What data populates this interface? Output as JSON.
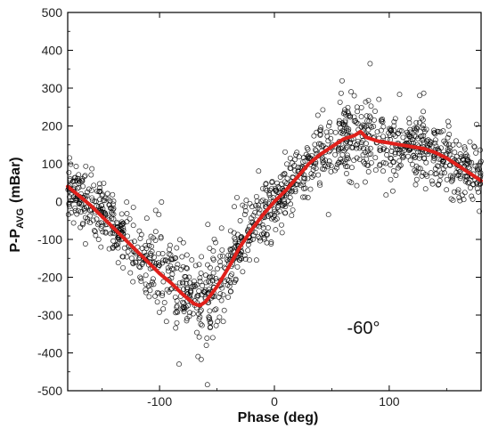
{
  "chart_data": {
    "type": "scatter",
    "title": "",
    "xlabel": "Phase (deg)",
    "ylabel_main": "P-P",
    "ylabel_sub": "AVG",
    "ylabel_unit": "(mBar)",
    "xlim": [
      -180,
      180
    ],
    "ylim": [
      -500,
      500
    ],
    "xticks": [
      -100,
      0,
      100
    ],
    "yticks": [
      -500,
      -400,
      -300,
      -200,
      -100,
      0,
      100,
      200,
      300,
      400,
      500
    ],
    "grid": false,
    "annotation": "-60°",
    "series": [
      {
        "style": "scatter",
        "marker": "open-circle",
        "color": "#000000",
        "spread_mbar": 40,
        "point_count": 1400
      },
      {
        "style": "line",
        "color": "#e0201b",
        "x": [
          -180,
          -170,
          -160,
          -150,
          -140,
          -130,
          -120,
          -110,
          -100,
          -90,
          -80,
          -70,
          -65,
          -60,
          -50,
          -40,
          -30,
          -20,
          -10,
          0,
          10,
          20,
          30,
          40,
          50,
          60,
          70,
          75,
          80,
          90,
          100,
          110,
          120,
          130,
          140,
          150,
          160,
          170,
          180
        ],
        "y": [
          40,
          15,
          -10,
          -40,
          -70,
          -100,
          -130,
          -160,
          -190,
          -215,
          -245,
          -270,
          -275,
          -265,
          -225,
          -175,
          -120,
          -75,
          -35,
          0,
          30,
          65,
          100,
          125,
          145,
          165,
          175,
          185,
          170,
          160,
          155,
          150,
          145,
          140,
          130,
          115,
          95,
          75,
          55
        ]
      }
    ]
  }
}
